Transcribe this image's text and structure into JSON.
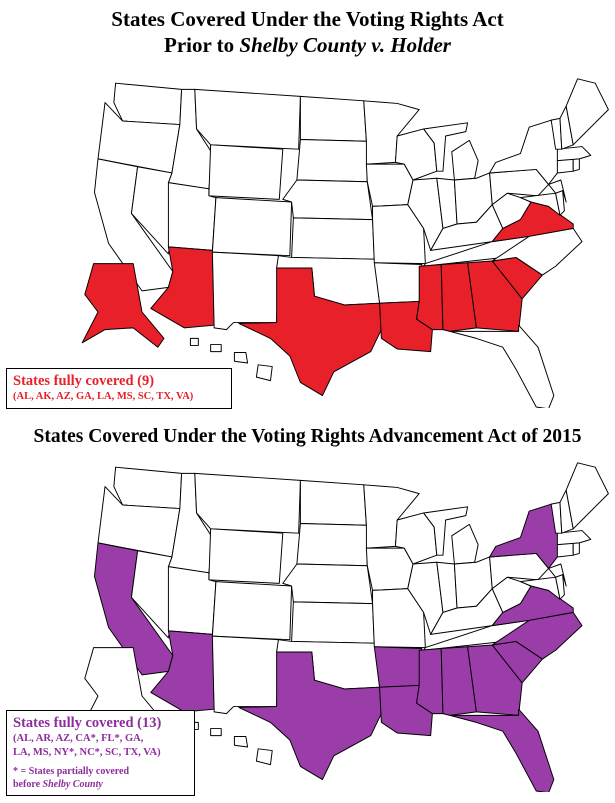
{
  "map1": {
    "title_line1": "States Covered Under the Voting Rights Act",
    "title_prefix": "Prior to ",
    "title_case": "Shelby County v. Holder",
    "legend_heading": "States fully covered (9)",
    "legend_list": "(AL, AK, AZ, GA, LA, MS, SC, TX, VA)",
    "highlight_color": "#e8202a",
    "covered_states": [
      "AL",
      "AK",
      "AZ",
      "GA",
      "LA",
      "MS",
      "SC",
      "TX",
      "VA"
    ]
  },
  "map2": {
    "title": "States Covered Under the Voting Rights Advancement Act of 2015",
    "legend_heading": "States fully covered (13)",
    "legend_list_line1": "(AL, AR, AZ, CA*, FL*, GA,",
    "legend_list_line2": "LA, MS, NY*, NC*, SC, TX, VA)",
    "note_line1": "* = States partially covered",
    "note_prefix": "before ",
    "note_case": "Shelby County",
    "highlight_color": "#9a3da8",
    "covered_states": [
      "AL",
      "AR",
      "AZ",
      "CA",
      "FL",
      "GA",
      "LA",
      "MS",
      "NY",
      "NC",
      "SC",
      "TX",
      "VA"
    ]
  },
  "base_color": "#ffffff",
  "border_color": "#000000"
}
